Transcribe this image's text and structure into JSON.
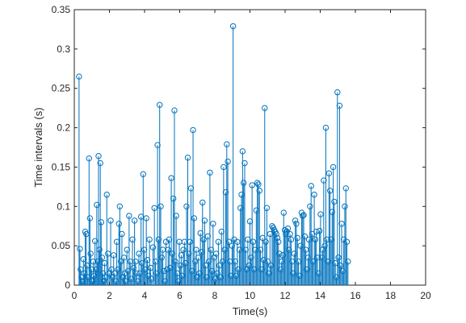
{
  "chart_data": {
    "type": "stem",
    "xlabel": "Time(s)",
    "ylabel": "Time intervals (s)",
    "xlim": [
      0,
      20
    ],
    "ylim": [
      0,
      0.35
    ],
    "xticks": [
      "0",
      "2",
      "4",
      "6",
      "8",
      "10",
      "12",
      "14",
      "16",
      "18",
      "20"
    ],
    "yticks": [
      "0",
      "0.05",
      "0.1",
      "0.15",
      "0.2",
      "0.25",
      "0.3",
      "0.35"
    ],
    "grid": false,
    "series_color": "#0072BD",
    "points": [
      [
        0.27,
        0.265
      ],
      [
        0.32,
        0.046
      ],
      [
        0.36,
        0.02
      ],
      [
        0.41,
        0.01
      ],
      [
        0.46,
        0.005
      ],
      [
        0.52,
        0.033
      ],
      [
        0.57,
        0.015
      ],
      [
        0.62,
        0.068
      ],
      [
        0.68,
        0.065
      ],
      [
        0.73,
        0.025
      ],
      [
        0.78,
        0.01
      ],
      [
        0.84,
        0.161
      ],
      [
        0.89,
        0.085
      ],
      [
        0.93,
        0.04
      ],
      [
        0.98,
        0.02
      ],
      [
        1.03,
        0.005
      ],
      [
        1.08,
        0.03
      ],
      [
        1.12,
        0.012
      ],
      [
        1.18,
        0.056
      ],
      [
        1.23,
        0.02
      ],
      [
        1.28,
        0.102
      ],
      [
        1.33,
        0.03
      ],
      [
        1.38,
        0.164
      ],
      [
        1.43,
        0.045
      ],
      [
        1.48,
        0.155
      ],
      [
        1.53,
        0.08
      ],
      [
        1.58,
        0.035
      ],
      [
        1.63,
        0.015
      ],
      [
        1.68,
        0.005
      ],
      [
        1.73,
        0.028
      ],
      [
        1.78,
        0.01
      ],
      [
        1.85,
        0.115
      ],
      [
        1.92,
        0.04
      ],
      [
        1.99,
        0.015
      ],
      [
        2.07,
        0.082
      ],
      [
        2.12,
        0.02
      ],
      [
        2.18,
        0.01
      ],
      [
        2.24,
        0.038
      ],
      [
        2.3,
        0.015
      ],
      [
        2.36,
        0.005
      ],
      [
        2.42,
        0.055
      ],
      [
        2.48,
        0.02
      ],
      [
        2.54,
        0.078
      ],
      [
        2.59,
        0.1
      ],
      [
        2.65,
        0.03
      ],
      [
        2.71,
        0.065
      ],
      [
        2.77,
        0.01
      ],
      [
        2.83,
        0.035
      ],
      [
        2.88,
        0.015
      ],
      [
        2.93,
        0.005
      ],
      [
        3.0,
        0.045
      ],
      [
        3.06,
        0.018
      ],
      [
        3.12,
        0.088
      ],
      [
        3.18,
        0.03
      ],
      [
        3.24,
        0.008
      ],
      [
        3.31,
        0.058
      ],
      [
        3.37,
        0.022
      ],
      [
        3.43,
        0.082
      ],
      [
        3.49,
        0.03
      ],
      [
        3.55,
        0.015
      ],
      [
        3.62,
        0.005
      ],
      [
        3.68,
        0.04
      ],
      [
        3.74,
        0.015
      ],
      [
        3.8,
        0.087
      ],
      [
        3.86,
        0.028
      ],
      [
        3.92,
        0.141
      ],
      [
        3.98,
        0.045
      ],
      [
        4.04,
        0.02
      ],
      [
        4.1,
        0.085
      ],
      [
        4.16,
        0.032
      ],
      [
        4.22,
        0.012
      ],
      [
        4.28,
        0.058
      ],
      [
        4.34,
        0.022
      ],
      [
        4.4,
        0.008
      ],
      [
        4.48,
        0.048
      ],
      [
        4.56,
        0.098
      ],
      [
        4.62,
        0.03
      ],
      [
        4.68,
        0.015
      ],
      [
        4.74,
        0.178
      ],
      [
        4.8,
        0.058
      ],
      [
        4.86,
        0.229
      ],
      [
        4.92,
        0.1
      ],
      [
        4.98,
        0.035
      ],
      [
        5.04,
        0.045
      ],
      [
        5.1,
        0.018
      ],
      [
        5.16,
        0.005
      ],
      [
        5.22,
        0.055
      ],
      [
        5.28,
        0.02
      ],
      [
        5.34,
        0.045
      ],
      [
        5.4,
        0.058
      ],
      [
        5.46,
        0.022
      ],
      [
        5.52,
        0.136
      ],
      [
        5.58,
        0.04
      ],
      [
        5.64,
        0.11
      ],
      [
        5.7,
        0.222
      ],
      [
        5.75,
        0.03
      ],
      [
        5.8,
        0.088
      ],
      [
        5.86,
        0.015
      ],
      [
        5.92,
        0.005
      ],
      [
        5.98,
        0.055
      ],
      [
        6.03,
        0.025
      ],
      [
        6.09,
        0.038
      ],
      [
        6.15,
        0.012
      ],
      [
        6.21,
        0.045
      ],
      [
        6.27,
        0.055
      ],
      [
        6.33,
        0.028
      ],
      [
        6.39,
        0.1
      ],
      [
        6.46,
        0.162
      ],
      [
        6.52,
        0.04
      ],
      [
        6.58,
        0.055
      ],
      [
        6.64,
        0.123
      ],
      [
        6.7,
        0.018
      ],
      [
        6.76,
        0.197
      ],
      [
        6.82,
        0.085
      ],
      [
        6.88,
        0.03
      ],
      [
        6.94,
        0.045
      ],
      [
        7.0,
        0.01
      ],
      [
        7.06,
        0.035
      ],
      [
        7.12,
        0.015
      ],
      [
        7.18,
        0.066
      ],
      [
        7.24,
        0.042
      ],
      [
        7.3,
        0.105
      ],
      [
        7.36,
        0.058
      ],
      [
        7.42,
        0.082
      ],
      [
        7.48,
        0.025
      ],
      [
        7.54,
        0.01
      ],
      [
        7.6,
        0.062
      ],
      [
        7.66,
        0.03
      ],
      [
        7.72,
        0.143
      ],
      [
        7.78,
        0.045
      ],
      [
        7.84,
        0.018
      ],
      [
        7.9,
        0.078
      ],
      [
        7.96,
        0.035
      ],
      [
        8.02,
        0.008
      ],
      [
        8.08,
        0.04
      ],
      [
        8.14,
        0.015
      ],
      [
        8.2,
        0.055
      ],
      [
        8.26,
        0.025
      ],
      [
        8.32,
        0.01
      ],
      [
        8.38,
        0.068
      ],
      [
        8.44,
        0.03
      ],
      [
        8.5,
        0.15
      ],
      [
        8.56,
        0.045
      ],
      [
        8.62,
        0.118
      ],
      [
        8.68,
        0.179
      ],
      [
        8.74,
        0.157
      ],
      [
        8.8,
        0.055
      ],
      [
        8.86,
        0.03
      ],
      [
        8.92,
        0.012
      ],
      [
        8.98,
        0.05
      ],
      [
        9.04,
        0.329
      ],
      [
        9.1,
        0.058
      ],
      [
        9.16,
        0.03
      ],
      [
        9.22,
        0.012
      ],
      [
        9.28,
        0.055
      ],
      [
        9.34,
        0.02
      ],
      [
        9.4,
        0.045
      ],
      [
        9.46,
        0.098
      ],
      [
        9.52,
        0.115
      ],
      [
        9.58,
        0.17
      ],
      [
        9.64,
        0.13
      ],
      [
        9.7,
        0.155
      ],
      [
        9.76,
        0.045
      ],
      [
        9.82,
        0.02
      ],
      [
        9.88,
        0.058
      ],
      [
        9.94,
        0.025
      ],
      [
        10.0,
        0.081
      ],
      [
        10.06,
        0.035
      ],
      [
        10.12,
        0.127
      ],
      [
        10.18,
        0.055
      ],
      [
        10.24,
        0.02
      ],
      [
        10.3,
        0.045
      ],
      [
        10.36,
        0.095
      ],
      [
        10.42,
        0.13
      ],
      [
        10.48,
        0.128
      ],
      [
        10.54,
        0.12
      ],
      [
        10.6,
        0.045
      ],
      [
        10.66,
        0.02
      ],
      [
        10.72,
        0.06
      ],
      [
        10.78,
        0.032
      ],
      [
        10.84,
        0.225
      ],
      [
        10.9,
        0.055
      ],
      [
        10.96,
        0.098
      ],
      [
        11.02,
        0.03
      ],
      [
        11.08,
        0.015
      ],
      [
        11.14,
        0.065
      ],
      [
        11.2,
        0.025
      ],
      [
        11.26,
        0.075
      ],
      [
        11.32,
        0.073
      ],
      [
        11.38,
        0.07
      ],
      [
        11.44,
        0.068
      ],
      [
        11.5,
        0.065
      ],
      [
        11.56,
        0.06
      ],
      [
        11.62,
        0.055
      ],
      [
        11.68,
        0.04
      ],
      [
        11.74,
        0.02
      ],
      [
        11.8,
        0.03
      ],
      [
        11.86,
        0.038
      ],
      [
        11.92,
        0.092
      ],
      [
        11.98,
        0.07
      ],
      [
        12.04,
        0.065
      ],
      [
        12.1,
        0.068
      ],
      [
        12.16,
        0.072
      ],
      [
        12.22,
        0.045
      ],
      [
        12.28,
        0.065
      ],
      [
        12.34,
        0.058
      ],
      [
        12.4,
        0.03
      ],
      [
        12.46,
        0.015
      ],
      [
        12.52,
        0.04
      ],
      [
        12.58,
        0.082
      ],
      [
        12.64,
        0.078
      ],
      [
        12.7,
        0.06
      ],
      [
        12.76,
        0.03
      ],
      [
        12.82,
        0.012
      ],
      [
        12.88,
        0.05
      ],
      [
        12.94,
        0.092
      ],
      [
        13.0,
        0.088
      ],
      [
        13.06,
        0.089
      ],
      [
        13.12,
        0.062
      ],
      [
        13.18,
        0.045
      ],
      [
        13.24,
        0.02
      ],
      [
        13.3,
        0.035
      ],
      [
        13.36,
        0.058
      ],
      [
        13.42,
        0.1
      ],
      [
        13.48,
        0.126
      ],
      [
        13.54,
        0.065
      ],
      [
        13.6,
        0.03
      ],
      [
        13.66,
        0.115
      ],
      [
        13.72,
        0.058
      ],
      [
        13.78,
        0.068
      ],
      [
        13.84,
        0.035
      ],
      [
        13.9,
        0.015
      ],
      [
        13.96,
        0.069
      ],
      [
        14.02,
        0.09
      ],
      [
        14.08,
        0.035
      ],
      [
        14.14,
        0.045
      ],
      [
        14.2,
        0.133
      ],
      [
        14.26,
        0.05
      ],
      [
        14.32,
        0.2
      ],
      [
        14.38,
        0.058
      ],
      [
        14.44,
        0.03
      ],
      [
        14.5,
        0.142
      ],
      [
        14.56,
        0.12
      ],
      [
        14.62,
        0.058
      ],
      [
        14.68,
        0.093
      ],
      [
        14.74,
        0.15
      ],
      [
        14.8,
        0.106
      ],
      [
        14.86,
        0.028
      ],
      [
        14.92,
        0.01
      ],
      [
        14.98,
        0.245
      ],
      [
        15.04,
        0.035
      ],
      [
        15.1,
        0.228
      ],
      [
        15.16,
        0.025
      ],
      [
        15.22,
        0.078
      ],
      [
        15.28,
        0.018
      ],
      [
        15.34,
        0.058
      ],
      [
        15.4,
        0.1
      ],
      [
        15.46,
        0.123
      ],
      [
        15.52,
        0.055
      ],
      [
        15.58,
        0.03
      ]
    ]
  }
}
